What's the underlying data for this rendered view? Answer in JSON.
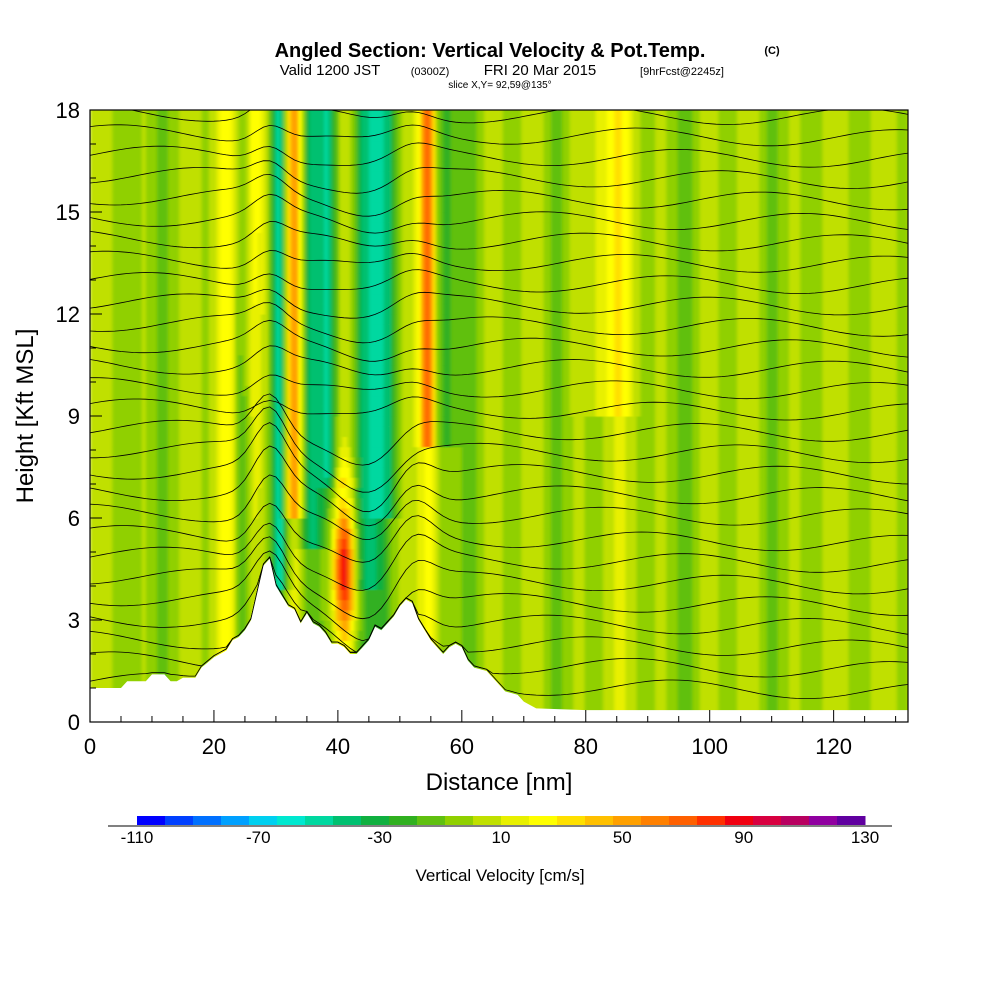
{
  "header": {
    "title": "Angled Section: Vertical Velocity & Pot.Temp.",
    "title_unit": "(C)",
    "valid_prefix": "Valid 1200 JST",
    "valid_utc": "(0300Z)",
    "valid_date": "FRI 20 Mar 2015",
    "forecast": "[9hrFcst@2245z]",
    "slice": "slice X,Y= 92,59@135°"
  },
  "chart_data": {
    "type": "heatmap",
    "xlabel": "Distance [nm]",
    "ylabel": "Height [Kft MSL]",
    "xlim": [
      0,
      132
    ],
    "ylim": [
      0,
      18
    ],
    "x_ticks": [
      "0",
      "20",
      "40",
      "60",
      "80",
      "100",
      "120"
    ],
    "y_ticks": [
      "0",
      "3",
      "6",
      "9",
      "12",
      "15",
      "18"
    ],
    "field": "Vertical Velocity",
    "contour_field": "Pot.Temp.",
    "terrain": [
      [
        0,
        1.0
      ],
      [
        5,
        1.0
      ],
      [
        6,
        1.2
      ],
      [
        9,
        1.2
      ],
      [
        10,
        1.4
      ],
      [
        12,
        1.4
      ],
      [
        13,
        1.2
      ],
      [
        14,
        1.2
      ],
      [
        15,
        1.3
      ],
      [
        17,
        1.3
      ],
      [
        18,
        1.6
      ],
      [
        20,
        1.9
      ],
      [
        22,
        2.1
      ],
      [
        23,
        2.4
      ],
      [
        24,
        2.5
      ],
      [
        25,
        2.7
      ],
      [
        26,
        3.0
      ],
      [
        27,
        3.8
      ],
      [
        28,
        4.6
      ],
      [
        29,
        4.8
      ],
      [
        30,
        4.0
      ],
      [
        31,
        3.7
      ],
      [
        32,
        3.4
      ],
      [
        33,
        3.3
      ],
      [
        34,
        2.9
      ],
      [
        35,
        3.2
      ],
      [
        36,
        2.9
      ],
      [
        37,
        2.8
      ],
      [
        38,
        2.6
      ],
      [
        39,
        2.3
      ],
      [
        40,
        2.3
      ],
      [
        41,
        2.2
      ],
      [
        42,
        2.0
      ],
      [
        43,
        2.0
      ],
      [
        44,
        2.2
      ],
      [
        45,
        2.4
      ],
      [
        46,
        2.8
      ],
      [
        47,
        2.7
      ],
      [
        48,
        2.9
      ],
      [
        49,
        3.1
      ],
      [
        50,
        3.4
      ],
      [
        51,
        3.6
      ],
      [
        52,
        3.5
      ],
      [
        53,
        3.0
      ],
      [
        54,
        2.7
      ],
      [
        55,
        2.4
      ],
      [
        56,
        2.2
      ],
      [
        57,
        2.0
      ],
      [
        58,
        2.2
      ],
      [
        59,
        2.3
      ],
      [
        60,
        2.2
      ],
      [
        61,
        1.8
      ],
      [
        62,
        1.6
      ],
      [
        64,
        1.5
      ],
      [
        65,
        1.3
      ],
      [
        66,
        1.1
      ],
      [
        67,
        0.9
      ],
      [
        69,
        0.8
      ],
      [
        70,
        0.6
      ],
      [
        72,
        0.4
      ],
      [
        80,
        0.35
      ],
      [
        100,
        0.35
      ],
      [
        120,
        0.35
      ],
      [
        132,
        0.35
      ]
    ],
    "colorbar": {
      "label": "Vertical Velocity [cm/s]",
      "min": -110,
      "max": 130,
      "step": 10,
      "tick_labels": [
        "-110",
        "-70",
        "-30",
        "10",
        "50",
        "90",
        "130"
      ],
      "colors": [
        "#0000ff",
        "#0040ff",
        "#0070ff",
        "#00a0ff",
        "#00d0f0",
        "#00e8d0",
        "#00d8a0",
        "#00c070",
        "#10b040",
        "#30b020",
        "#60c010",
        "#90d000",
        "#c0e000",
        "#e8f000",
        "#ffff00",
        "#ffe000",
        "#ffc000",
        "#ffa000",
        "#ff8000",
        "#ff6000",
        "#ff3000",
        "#f00010",
        "#d80040",
        "#b80060",
        "#9000a0",
        "#6000a0"
      ]
    }
  }
}
